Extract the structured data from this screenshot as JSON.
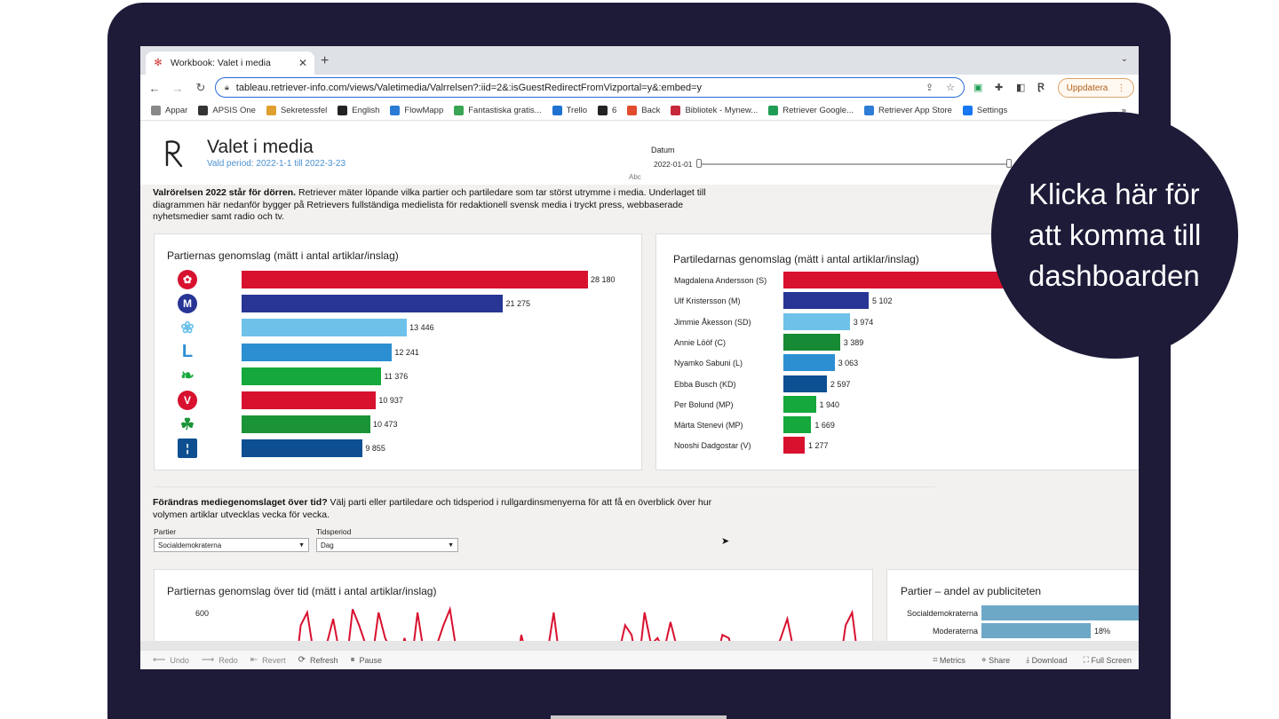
{
  "browser": {
    "tab_title": "Workbook: Valet i media",
    "url": "tableau.retriever-info.com/views/Valetimedia/Valrrelsen?:iid=2&:isGuestRedirectFromVizportal=y&:embed=y",
    "update_label": "Uppdatera",
    "bookmarks": [
      "Appar",
      "APSIS One",
      "Sekretessfel",
      "English",
      "FlowMapp",
      "Fantastiska gratis...",
      "Trello",
      "6",
      "Back",
      "Bibliotek - Mynew...",
      "Retriever Google...",
      "Retriever App Store",
      "Settings"
    ],
    "bookmark_colors": [
      "#888888",
      "#333333",
      "#e0a030",
      "#222222",
      "#2a7bd6",
      "#3aa655",
      "#1e73d2",
      "#222222",
      "#e04b2d",
      "#c8283c",
      "#1f9d55",
      "#2f7cd6",
      "#1877f2"
    ],
    "overflow": "»"
  },
  "header": {
    "title": "Valet i media",
    "subtitle": "Vald period: 2022-1-1 till 2022-3-23",
    "date_label": "Datum",
    "date_value": "2022-01-01",
    "abc": "Abc"
  },
  "intro": {
    "bold": "Valrörelsen 2022 står för dörren.",
    "text": " Retriever mäter löpande vilka partier och partiledare som tar störst utrymme i media. Underlaget till diagrammen här nedanför bygger på Retrievers fullständiga medielista för redaktionell svensk media i tryckt press, webbaserade nyhetsmedier samt radio och tv."
  },
  "chart_data": [
    {
      "type": "bar",
      "title": "Partiernas genomslag (mätt i antal artiklar/inslag)",
      "categories": [
        "S",
        "M",
        "SD",
        "L",
        "C",
        "V",
        "KD",
        "MP"
      ],
      "logos": [
        "rose-icon",
        "m-icon",
        "flower-icon",
        "l-icon",
        "leaf-icon",
        "v-icon",
        "clover-icon",
        "mp-icon"
      ],
      "values": [
        28180,
        21275,
        13446,
        12241,
        11376,
        10937,
        10473,
        9855
      ],
      "labels": [
        "28 180",
        "21 275",
        "13 446",
        "12 241",
        "11 376",
        "10 937",
        "10 473",
        "9 855"
      ],
      "colors": [
        "#d8112f",
        "#283595",
        "#6ec2ea",
        "#2b8fd2",
        "#15a83c",
        "#d8112f",
        "#1a9436",
        "#0d4f91"
      ]
    },
    {
      "type": "bar",
      "title": "Partiledarnas genomslag (mätt i antal artiklar/inslag)",
      "categories": [
        "Magdalena Andersson (S)",
        "Ulf Kristersson (M)",
        "Jimmie Åkesson (SD)",
        "Annie Lööf (C)",
        "Nyamko Sabuni (L)",
        "Ebba Busch (KD)",
        "Per Bolund (MP)",
        "Märta Stenevi (MP)",
        "Nooshi Dadgostar (V)"
      ],
      "values": [
        null,
        5102,
        3974,
        3389,
        3063,
        2597,
        1940,
        1669,
        1277
      ],
      "labels": [
        "",
        "5 102",
        "3 974",
        "3 389",
        "3 063",
        "2 597",
        "1 940",
        "1 669",
        "1 277"
      ],
      "colors": [
        "#d8112f",
        "#283595",
        "#6ec2ea",
        "#168a34",
        "#2b8fd2",
        "#0d4f91",
        "#15a83c",
        "#15a83c",
        "#d8112f"
      ]
    },
    {
      "type": "line",
      "title": "Partiernas genomslag över tid (mätt i antal artiklar/inslag)",
      "y_tick": "600",
      "series": [
        {
          "values": [
            420,
            380,
            560,
            600,
            470,
            410,
            500,
            580,
            470,
            430,
            610,
            560,
            500,
            450,
            600,
            520,
            480,
            440,
            520,
            430,
            600,
            470,
            420,
            500,
            560,
            610,
            480,
            430,
            400,
            420,
            380,
            430,
            420,
            410,
            480,
            380,
            530,
            450,
            470,
            480,
            470,
            600,
            440,
            430,
            400,
            480,
            440,
            420,
            400,
            510,
            430,
            470,
            560,
            530,
            420,
            600,
            500,
            520,
            480,
            570,
            490,
            470,
            500,
            450,
            420,
            430,
            440,
            530,
            520,
            440,
            470,
            480,
            430,
            440,
            430,
            470,
            520,
            580,
            480,
            470,
            430,
            440,
            420,
            450,
            470,
            420,
            560,
            600,
            440,
            430
          ]
        }
      ],
      "colors": [
        "#d8112f"
      ]
    },
    {
      "type": "bar",
      "title": "Partier – andel av publiciteten",
      "categories": [
        "Socialdemokraterna",
        "Moderaterna"
      ],
      "values": [
        null,
        18
      ],
      "labels": [
        "",
        "18%"
      ],
      "colors": [
        "#6ea8c7",
        "#6ea8c7"
      ]
    }
  ],
  "section2": {
    "bold": "Förändras mediegenomslaget över tid?",
    "text": " Välj parti eller partiledare och tidsperiod i rullgardinsmenyerna för att få en överblick över hur volymen artiklar utvecklas vecka för vecka.",
    "filter_party_label": "Partier",
    "filter_party_value": "Socialdemokraterna",
    "filter_period_label": "Tidsperiod",
    "filter_period_value": "Dag"
  },
  "bottombar": {
    "undo": "Undo",
    "redo": "Redo",
    "revert": "Revert",
    "refresh": "Refresh",
    "pause": "Pause",
    "metrics": "Metrics",
    "share": "Share",
    "download": "Download",
    "fullscreen": "Full Screen"
  },
  "bubble": {
    "text": "Klicka här för att komma till dashboarden"
  }
}
